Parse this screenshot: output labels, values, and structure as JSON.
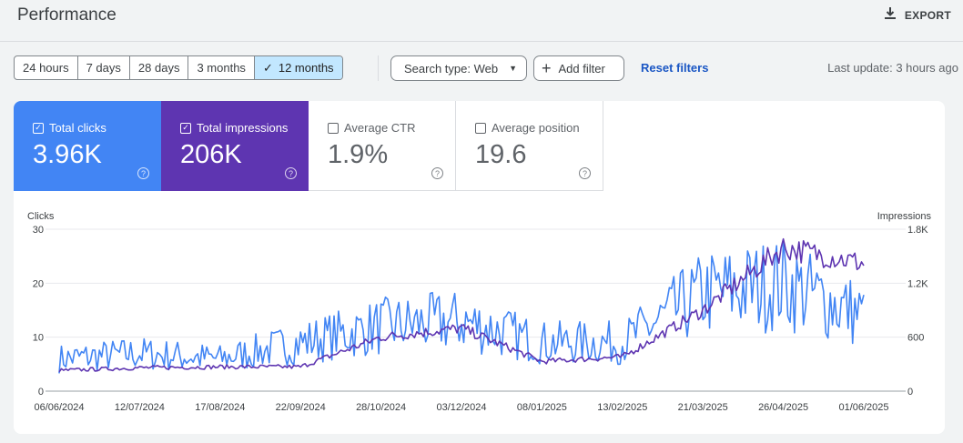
{
  "header": {
    "title": "Performance",
    "export_label": "EXPORT"
  },
  "toolbar": {
    "ranges": [
      "24 hours",
      "7 days",
      "28 days",
      "3 months",
      "12 months"
    ],
    "active_range": "12 months",
    "search_type": "Search type: Web",
    "add_filter": "Add filter",
    "reset_filters": "Reset filters",
    "last_update": "Last update: 3 hours ago"
  },
  "metrics": [
    {
      "label": "Total clicks",
      "value": "3.96K",
      "checked": true
    },
    {
      "label": "Total impressions",
      "value": "206K",
      "checked": true
    },
    {
      "label": "Average CTR",
      "value": "1.9%",
      "checked": false
    },
    {
      "label": "Average position",
      "value": "19.6",
      "checked": false
    }
  ],
  "colors": {
    "clicks": "#4285f4",
    "impressions": "#5e35b1",
    "accent_tab": "#c2e7ff",
    "link": "#1a56c4"
  },
  "chart_data": {
    "type": "line",
    "left_axis_label": "Clicks",
    "right_axis_label": "Impressions",
    "left_ticks": [
      "0",
      "10",
      "20",
      "30"
    ],
    "right_ticks": [
      "0",
      "600",
      "1.2K",
      "1.8K"
    ],
    "left_range": [
      0,
      30
    ],
    "right_range": [
      0,
      1800
    ],
    "x_labels": [
      "06/06/2024",
      "12/07/2024",
      "17/08/2024",
      "22/09/2024",
      "28/10/2024",
      "03/12/2024",
      "08/01/2025",
      "13/02/2025",
      "21/03/2025",
      "26/04/2025",
      "01/06/2025"
    ],
    "series": [
      {
        "name": "Clicks",
        "axis": "left",
        "points_by_tick": [
          [
            "06/06/2024",
            6
          ],
          [
            "12/07/2024",
            7
          ],
          [
            "17/08/2024",
            6
          ],
          [
            "22/09/2024",
            9
          ],
          [
            "28/10/2024",
            12
          ],
          [
            "03/12/2024",
            13
          ],
          [
            "08/01/2025",
            9
          ],
          [
            "13/02/2025",
            9
          ],
          [
            "21/03/2025",
            18
          ],
          [
            "26/04/2025",
            20
          ],
          [
            "01/06/2025",
            14
          ]
        ]
      },
      {
        "name": "Impressions",
        "axis": "right",
        "points_by_tick": [
          [
            "06/06/2024",
            230
          ],
          [
            "12/07/2024",
            260
          ],
          [
            "17/08/2024",
            270
          ],
          [
            "22/09/2024",
            270
          ],
          [
            "28/10/2024",
            600
          ],
          [
            "03/12/2024",
            700
          ],
          [
            "08/01/2025",
            330
          ],
          [
            "13/02/2025",
            380
          ],
          [
            "21/03/2025",
            900
          ],
          [
            "26/04/2025",
            1600
          ],
          [
            "01/06/2025",
            1420
          ]
        ]
      }
    ],
    "grid": true,
    "legend": "none"
  }
}
